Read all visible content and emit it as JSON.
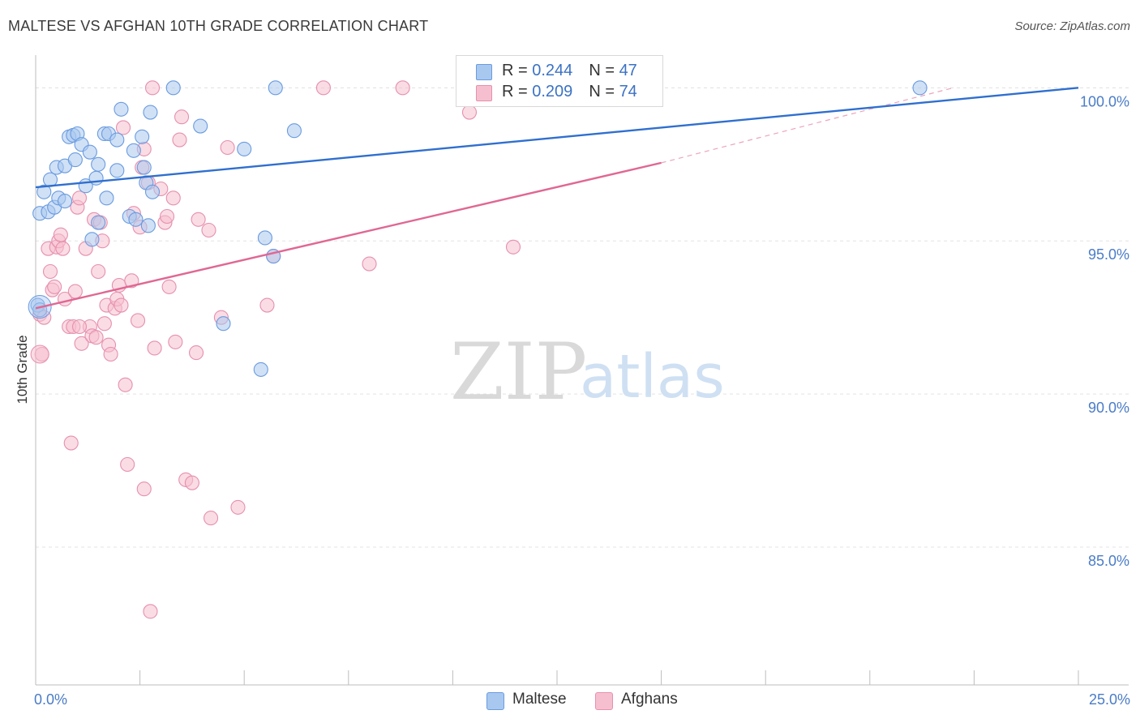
{
  "header": {
    "title": "MALTESE VS AFGHAN 10TH GRADE CORRELATION CHART",
    "source": "Source: ZipAtlas.com"
  },
  "watermark": {
    "zip": "ZIP",
    "atlas": "atlas"
  },
  "legend": {
    "items": [
      {
        "r_label": "R = ",
        "r_value": "0.244",
        "n_label": "N = ",
        "n_value": "47"
      },
      {
        "r_label": "R = ",
        "r_value": "0.209",
        "n_label": "N = ",
        "n_value": "74"
      }
    ]
  },
  "bottom_legend": {
    "maltese": "Maltese",
    "afghans": "Afghans"
  },
  "colors": {
    "maltese_fill": "#a9c8ef",
    "maltese_stroke": "#6a9be0",
    "maltese_line": "#2f6fcf",
    "afghan_fill": "#f6bfd0",
    "afghan_stroke": "#e690ad",
    "afghan_line": "#e06793",
    "axis_tick": "#4a7cc7",
    "grid": "#e3e3e3"
  },
  "chart_data": {
    "type": "scatter",
    "title": "MALTESE VS AFGHAN 10TH GRADE CORRELATION CHART",
    "xlabel": "",
    "ylabel": "10th Grade",
    "xlim": [
      0,
      25
    ],
    "ylim": [
      80.5,
      100.75
    ],
    "x_tick_labels": [
      "0.0%",
      "25.0%"
    ],
    "y_ticks": [
      85,
      90,
      95,
      100
    ],
    "y_tick_labels": [
      "85.0%",
      "90.0%",
      "95.0%",
      "100.0%"
    ],
    "series": [
      {
        "name": "Maltese",
        "r": 0.244,
        "n": 47,
        "trend": {
          "x": [
            0,
            25
          ],
          "y": [
            96.75,
            100.0
          ]
        },
        "points": [
          [
            0.2,
            96.6
          ],
          [
            0.1,
            95.9
          ],
          [
            0.3,
            95.95
          ],
          [
            0.35,
            97.0
          ],
          [
            0.45,
            96.1
          ],
          [
            0.5,
            97.4
          ],
          [
            0.55,
            96.4
          ],
          [
            0.7,
            97.45
          ],
          [
            0.7,
            96.3
          ],
          [
            0.8,
            98.4
          ],
          [
            0.9,
            98.45
          ],
          [
            0.95,
            97.65
          ],
          [
            1.0,
            98.5
          ],
          [
            1.1,
            98.15
          ],
          [
            1.2,
            96.8
          ],
          [
            1.3,
            97.9
          ],
          [
            1.45,
            97.05
          ],
          [
            1.5,
            97.5
          ],
          [
            1.5,
            95.6
          ],
          [
            1.35,
            95.05
          ],
          [
            1.65,
            98.5
          ],
          [
            1.7,
            96.4
          ],
          [
            1.75,
            98.5
          ],
          [
            1.95,
            98.3
          ],
          [
            1.95,
            97.3
          ],
          [
            2.05,
            99.3
          ],
          [
            2.25,
            95.8
          ],
          [
            2.35,
            97.95
          ],
          [
            2.4,
            95.7
          ],
          [
            2.55,
            98.4
          ],
          [
            2.6,
            97.4
          ],
          [
            2.65,
            96.9
          ],
          [
            2.7,
            95.5
          ],
          [
            2.75,
            99.2
          ],
          [
            2.8,
            96.6
          ],
          [
            3.3,
            100.0
          ],
          [
            3.95,
            98.75
          ],
          [
            4.5,
            92.3
          ],
          [
            5.0,
            98.0
          ],
          [
            5.4,
            90.8
          ],
          [
            5.5,
            95.1
          ],
          [
            5.7,
            94.5
          ],
          [
            5.75,
            100.0
          ],
          [
            6.2,
            98.6
          ],
          [
            21.2,
            100.0
          ],
          [
            0.05,
            92.9
          ],
          [
            0.1,
            92.75
          ]
        ]
      },
      {
        "name": "Afghans",
        "r": 0.209,
        "n": 74,
        "trend": {
          "x": [
            0,
            15
          ],
          "y": [
            92.8,
            97.55
          ]
        },
        "trend_dashed": {
          "x": [
            15,
            22
          ],
          "y": [
            97.55,
            100.0
          ]
        },
        "points": [
          [
            0.1,
            92.6
          ],
          [
            0.15,
            91.3
          ],
          [
            0.2,
            92.5
          ],
          [
            0.3,
            94.75
          ],
          [
            0.35,
            94.0
          ],
          [
            0.4,
            93.4
          ],
          [
            0.45,
            93.5
          ],
          [
            0.5,
            94.8
          ],
          [
            0.55,
            95.0
          ],
          [
            0.6,
            95.2
          ],
          [
            0.65,
            94.75
          ],
          [
            0.7,
            93.1
          ],
          [
            0.8,
            92.2
          ],
          [
            0.85,
            88.4
          ],
          [
            0.9,
            92.2
          ],
          [
            0.95,
            93.35
          ],
          [
            1.0,
            96.1
          ],
          [
            1.05,
            96.4
          ],
          [
            1.1,
            91.65
          ],
          [
            1.2,
            94.75
          ],
          [
            1.3,
            92.2
          ],
          [
            1.35,
            91.9
          ],
          [
            1.4,
            95.7
          ],
          [
            1.45,
            91.85
          ],
          [
            1.5,
            94.0
          ],
          [
            1.55,
            95.6
          ],
          [
            1.6,
            95.0
          ],
          [
            1.65,
            92.3
          ],
          [
            1.7,
            92.9
          ],
          [
            1.75,
            91.6
          ],
          [
            1.8,
            91.3
          ],
          [
            1.9,
            92.8
          ],
          [
            1.95,
            93.1
          ],
          [
            2.0,
            93.55
          ],
          [
            2.05,
            92.9
          ],
          [
            2.1,
            98.7
          ],
          [
            2.15,
            90.3
          ],
          [
            2.2,
            87.7
          ],
          [
            2.3,
            93.7
          ],
          [
            2.35,
            95.9
          ],
          [
            2.45,
            92.4
          ],
          [
            2.5,
            95.45
          ],
          [
            2.55,
            97.4
          ],
          [
            2.6,
            86.9
          ],
          [
            2.7,
            96.9
          ],
          [
            2.75,
            82.9
          ],
          [
            2.8,
            100.0
          ],
          [
            2.85,
            91.5
          ],
          [
            3.0,
            96.7
          ],
          [
            3.1,
            95.6
          ],
          [
            3.15,
            95.8
          ],
          [
            3.2,
            93.5
          ],
          [
            3.3,
            96.4
          ],
          [
            3.35,
            91.7
          ],
          [
            3.45,
            98.3
          ],
          [
            3.5,
            99.05
          ],
          [
            3.6,
            87.2
          ],
          [
            3.75,
            87.1
          ],
          [
            3.85,
            91.35
          ],
          [
            3.9,
            95.7
          ],
          [
            4.15,
            95.35
          ],
          [
            4.2,
            85.95
          ],
          [
            4.45,
            92.5
          ],
          [
            4.6,
            98.05
          ],
          [
            4.85,
            86.3
          ],
          [
            5.55,
            92.9
          ],
          [
            5.7,
            94.5
          ],
          [
            6.9,
            100.0
          ],
          [
            8.0,
            94.25
          ],
          [
            8.8,
            100.0
          ],
          [
            10.4,
            99.2
          ],
          [
            11.45,
            94.8
          ],
          [
            2.6,
            98.0
          ],
          [
            1.05,
            92.2
          ]
        ]
      }
    ]
  }
}
